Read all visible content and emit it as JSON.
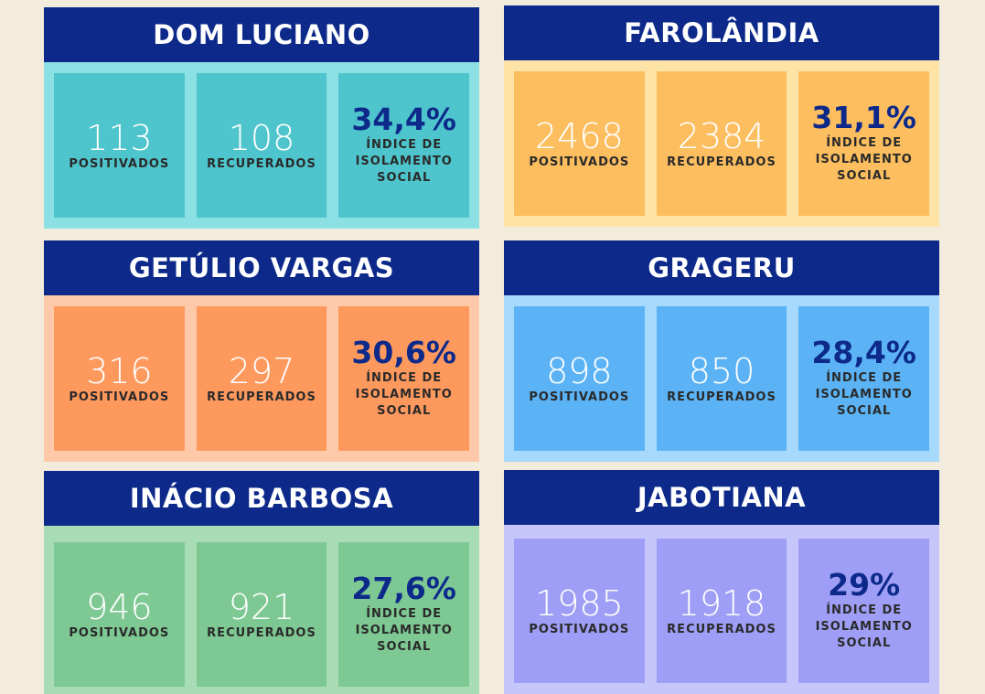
{
  "colors": {
    "header": "#0d2a8a",
    "background": "#f3ecdd",
    "teal_bg": "#8ae0e3",
    "teal_tile": "#4ec5cc",
    "yellow_bg": "#fde3a6",
    "yellow_tile": "#fcbe5f",
    "orange_bg": "#fdc9a8",
    "orange_tile": "#fe995e",
    "blue_bg": "#a6d9fb",
    "blue_tile": "#5bb3f6",
    "green_bg": "#a8dcb5",
    "green_tile": "#7ec893",
    "purple_bg": "#c6c6fb",
    "purple_tile": "#9e9ef6"
  },
  "labels": {
    "positivos": "POSITIVADOS",
    "recuperados": "RECUPERADOS",
    "indice_1": "ÍNDICE DE",
    "indice_2": "ISOLAMENTO",
    "indice_3": "SOCIAL"
  },
  "neighborhoods": [
    {
      "name": "DOM LUCIANO",
      "positivos": "113",
      "recuperados": "108",
      "isolamento": "34,4%"
    },
    {
      "name": "FAROLÂNDIA",
      "positivos": "2468",
      "recuperados": "2384",
      "isolamento": "31,1%"
    },
    {
      "name": "GETÚLIO VARGAS",
      "positivos": "316",
      "recuperados": "297",
      "isolamento": "30,6%"
    },
    {
      "name": "GRAGERU",
      "positivos": "898",
      "recuperados": "850",
      "isolamento": "28,4%"
    },
    {
      "name": "INÁCIO BARBOSA",
      "positivos": "946",
      "recuperados": "921",
      "isolamento": "27,6%"
    },
    {
      "name": "JABOTIANA",
      "positivos": "1985",
      "recuperados": "1918",
      "isolamento": "29%"
    }
  ]
}
